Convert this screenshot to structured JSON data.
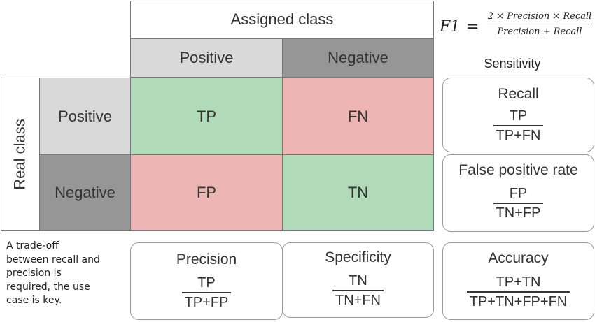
{
  "header": {
    "assigned_class": "Assigned class",
    "positive": "Positive",
    "negative": "Negative"
  },
  "real": {
    "label": "Real class",
    "positive": "Positive",
    "negative": "Negative"
  },
  "matrix": {
    "tp": "TP",
    "fn": "FN",
    "fp": "FP",
    "tn": "TN"
  },
  "colors": {
    "green": "#b1dab8",
    "red": "#eeb5b5",
    "light_gray": "#d9d9d9",
    "dark_gray": "#969696"
  },
  "formula": {
    "lhs": "F1",
    "eq": "=",
    "numerator": "2 × Precision × Recall",
    "denominator": "Precision + Recall"
  },
  "sensitivity_label": "Sensitivity",
  "cards": {
    "recall": {
      "title": "Recall",
      "num": "TP",
      "den": "TP+FN"
    },
    "fpr": {
      "title": "False positive rate",
      "num": "FP",
      "den": "TN+FP"
    },
    "precision": {
      "title": "Precision",
      "num": "TP",
      "den": "TP+FP"
    },
    "specificity": {
      "title": "Specificity",
      "num": "TN",
      "den": "TN+FN"
    },
    "accuracy": {
      "title": "Accuracy",
      "num": "TP+TN",
      "den": "TP+TN+FP+FN"
    }
  },
  "note": {
    "line1": "A trade-off",
    "line2": "between recall and",
    "line3": "precision is",
    "line4": "required, the use",
    "line5": "case is key."
  }
}
